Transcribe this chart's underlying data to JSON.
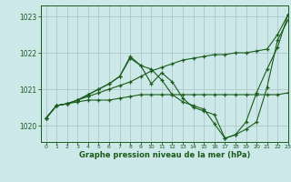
{
  "background_color": "#cce8e8",
  "grid_color": "#b0cccc",
  "line_color": "#1a5c1a",
  "text_color": "#1a5c1a",
  "xlabel": "Graphe pression niveau de la mer (hPa)",
  "xlim": [
    -0.5,
    23
  ],
  "ylim": [
    1019.55,
    1023.3
  ],
  "yticks": [
    1020,
    1021,
    1022,
    1023
  ],
  "xticks": [
    0,
    1,
    2,
    3,
    4,
    5,
    6,
    7,
    8,
    9,
    10,
    11,
    12,
    13,
    14,
    15,
    16,
    17,
    18,
    19,
    20,
    21,
    22,
    23
  ],
  "series": [
    {
      "x": [
        0,
        1,
        2,
        3,
        4,
        5,
        6,
        7,
        8,
        9,
        10,
        11,
        12,
        13,
        14,
        15,
        16,
        17,
        18,
        19,
        20,
        21,
        22,
        23
      ],
      "y": [
        1020.2,
        1020.55,
        1020.6,
        1020.65,
        1020.7,
        1020.7,
        1020.7,
        1020.75,
        1020.8,
        1020.85,
        1020.85,
        1020.85,
        1020.85,
        1020.85,
        1020.85,
        1020.85,
        1020.85,
        1020.85,
        1020.85,
        1020.85,
        1020.85,
        1020.85,
        1020.85,
        1020.9
      ]
    },
    {
      "x": [
        0,
        1,
        2,
        3,
        4,
        5,
        6,
        7,
        8,
        9,
        10,
        11,
        12,
        13,
        14,
        15,
        16,
        17,
        18,
        19,
        20,
        21,
        22,
        23
      ],
      "y": [
        1020.2,
        1020.55,
        1020.6,
        1020.7,
        1020.8,
        1020.9,
        1021.0,
        1021.1,
        1021.2,
        1021.35,
        1021.5,
        1021.6,
        1021.7,
        1021.8,
        1021.85,
        1021.9,
        1021.95,
        1021.95,
        1022.0,
        1022.0,
        1022.05,
        1022.1,
        1022.5,
        1023.05
      ]
    },
    {
      "x": [
        0,
        1,
        2,
        3,
        4,
        5,
        6,
        7,
        8,
        9,
        10,
        11,
        12,
        13,
        14,
        15,
        16,
        17,
        18,
        19,
        20,
        21,
        22,
        23
      ],
      "y": [
        1020.2,
        1020.55,
        1020.6,
        1020.7,
        1020.85,
        1021.0,
        1021.15,
        1021.35,
        1021.85,
        1021.65,
        1021.15,
        1021.45,
        1021.2,
        1020.75,
        1020.5,
        1020.4,
        1020.3,
        1019.65,
        1019.75,
        1019.9,
        1020.1,
        1021.05,
        1022.35,
        1022.9
      ]
    },
    {
      "x": [
        0,
        1,
        2,
        3,
        4,
        5,
        6,
        7,
        8,
        9,
        10,
        11,
        12,
        13,
        14,
        15,
        16,
        17,
        18,
        19,
        20,
        21,
        22,
        23
      ],
      "y": [
        1020.2,
        1020.55,
        1020.6,
        1020.7,
        1020.85,
        1021.0,
        1021.15,
        1021.35,
        1021.9,
        1021.65,
        1021.55,
        1021.25,
        1020.85,
        1020.65,
        1020.55,
        1020.45,
        1020.05,
        1019.65,
        1019.75,
        1020.1,
        1020.9,
        1021.55,
        1022.15,
        1023.05
      ]
    }
  ]
}
